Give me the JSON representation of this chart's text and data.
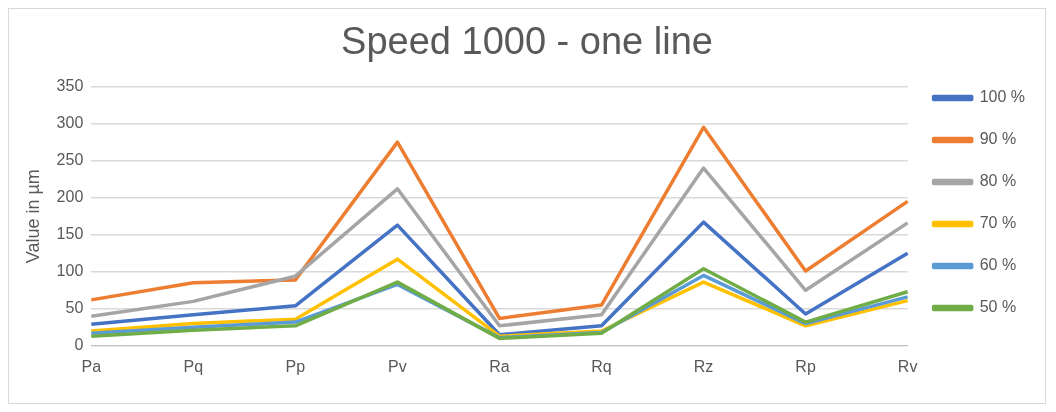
{
  "chart_data": {
    "type": "line",
    "title": "Speed 1000 - one line",
    "ylabel": "Value in µm",
    "categories": [
      "Pa",
      "Pq",
      "Pp",
      "Pv",
      "Ra",
      "Rq",
      "Rz",
      "Rp",
      "Rv"
    ],
    "ylim": [
      0,
      350
    ],
    "yticks": [
      0,
      50,
      100,
      150,
      200,
      250,
      300,
      350
    ],
    "grid": "y",
    "legend": "right",
    "marker": "none",
    "line_style": "solid",
    "series": [
      {
        "name": "100 %",
        "color": "#4472c4",
        "values": [
          29,
          42,
          54,
          163,
          15,
          27,
          167,
          43,
          125
        ]
      },
      {
        "name": "90 %",
        "color": "#ed7d31",
        "values": [
          62,
          85,
          89,
          275,
          37,
          55,
          295,
          101,
          195
        ]
      },
      {
        "name": "80 %",
        "color": "#a5a5a5",
        "values": [
          40,
          60,
          94,
          212,
          27,
          42,
          240,
          75,
          166
        ]
      },
      {
        "name": "70 %",
        "color": "#ffc000",
        "values": [
          20,
          30,
          36,
          117,
          13,
          20,
          86,
          27,
          61
        ]
      },
      {
        "name": "60 %",
        "color": "#5b9bd5",
        "values": [
          17,
          25,
          32,
          83,
          11,
          18,
          95,
          30,
          66
        ]
      },
      {
        "name": "50 %",
        "color": "#70ad47",
        "values": [
          13,
          21,
          27,
          86,
          10,
          17,
          104,
          32,
          73
        ]
      }
    ]
  }
}
